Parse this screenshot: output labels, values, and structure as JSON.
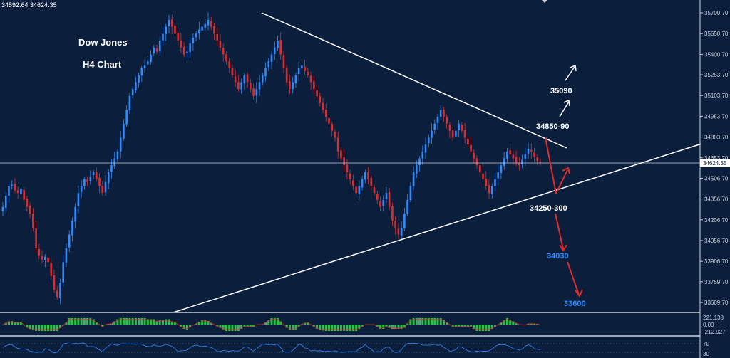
{
  "header": {
    "ohlc": "34592.64 34624.35"
  },
  "chart_title": {
    "line1": "Dow Jones",
    "line2": "H4 Chart"
  },
  "chart_data": {
    "type": "candlestick",
    "y_ticks": [
      "35700.70",
      "35550.70",
      "35400.70",
      "35253.70",
      "35103.70",
      "34953.70",
      "34803.70",
      "34653.70",
      "34506.70",
      "34356.70",
      "34206.70",
      "34056.70",
      "33906.70",
      "33759.70",
      "33609.70"
    ],
    "ylim": [
      33560,
      35760
    ],
    "last_price": "34624.35",
    "closes": [
      34300,
      34380,
      34450,
      34460,
      34420,
      34400,
      34430,
      34350,
      34300,
      34250,
      34150,
      34000,
      33950,
      33920,
      33940,
      33900,
      33800,
      33700,
      33650,
      33750,
      33900,
      34000,
      34100,
      34200,
      34300,
      34400,
      34450,
      34500,
      34480,
      34520,
      34550,
      34500,
      34450,
      34400,
      34480,
      34550,
      34600,
      34650,
      34700,
      34800,
      34900,
      35000,
      35100,
      35150,
      35200,
      35250,
      35300,
      35320,
      35350,
      35400,
      35450,
      35420,
      35500,
      35550,
      35600,
      35650,
      35600,
      35550,
      35500,
      35450,
      35400,
      35420,
      35480,
      35520,
      35550,
      35580,
      35600,
      35620,
      35650,
      35600,
      35550,
      35500,
      35450,
      35400,
      35350,
      35300,
      35250,
      35200,
      35150,
      35200,
      35250,
      35200,
      35150,
      35100,
      35150,
      35200,
      35250,
      35300,
      35350,
      35400,
      35450,
      35500,
      35400,
      35300,
      35200,
      35150,
      35200,
      35250,
      35300,
      35320,
      35280,
      35250,
      35200,
      35150,
      35100,
      35050,
      35000,
      34950,
      34900,
      34850,
      34800,
      34700,
      34650,
      34600,
      34550,
      34500,
      34450,
      34400,
      34450,
      34500,
      34550,
      34500,
      34450,
      34400,
      34350,
      34300,
      34350,
      34400,
      34300,
      34200,
      34150,
      34100,
      34150,
      34250,
      34350,
      34450,
      34550,
      34600,
      34650,
      34700,
      34750,
      34800,
      34850,
      34900,
      34950,
      35000,
      34950,
      34900,
      34850,
      34800,
      34850,
      34900,
      34850,
      34800,
      34750,
      34700,
      34650,
      34600,
      34550,
      34500,
      34450,
      34400,
      34450,
      34500,
      34550,
      34600,
      34650,
      34700,
      34680,
      34650,
      34620,
      34600,
      34640,
      34680,
      34720,
      34700,
      34660,
      34630,
      34620
    ],
    "trendlines": [
      {
        "name": "upper",
        "from": [
          367,
          18
        ],
        "to": [
          795,
          208
        ]
      },
      {
        "name": "lower",
        "from": [
          243,
          439
        ],
        "to": [
          984,
          202
        ]
      }
    ],
    "annotations": [
      {
        "label": "35090",
        "color": "#ffffff"
      },
      {
        "label": "34850-90",
        "color": "#ffffff"
      },
      {
        "label": "34250-300",
        "color": "#ffffff"
      },
      {
        "label": "34030",
        "color": "#2f8bff"
      },
      {
        "label": "33600",
        "color": "#2f8bff"
      }
    ]
  },
  "macd": {
    "upper": "221.138",
    "zero": "0.00",
    "lower": "-212.927"
  },
  "rsi": {
    "top": "70",
    "bottom": "30"
  },
  "colors": {
    "bg": "#0b1f3c",
    "bull": "#2f8bff",
    "bear": "#e02b2b",
    "line": "#ffffff",
    "histo": "#27c44c"
  }
}
